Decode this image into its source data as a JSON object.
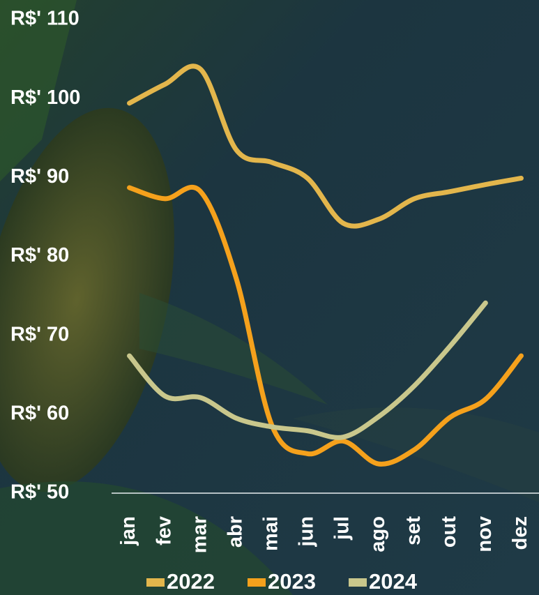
{
  "chart_data": {
    "type": "line",
    "categories": [
      "jan",
      "fev",
      "mar",
      "abr",
      "mai",
      "jun",
      "jul",
      "ago",
      "set",
      "out",
      "nov",
      "dez"
    ],
    "series": [
      {
        "name": "2022",
        "color": "#e3b64c",
        "values": [
          99.4,
          101.8,
          103.7,
          93.5,
          91.9,
          89.9,
          84.2,
          84.7,
          87.3,
          88.2,
          89.1,
          89.9
        ]
      },
      {
        "name": "2023",
        "color": "#f5a11c",
        "values": [
          88.7,
          87.3,
          88.2,
          77.2,
          58.6,
          55.0,
          56.6,
          53.7,
          55.5,
          59.6,
          61.9,
          67.4
        ]
      },
      {
        "name": "2024",
        "color": "#c9c78c",
        "values": [
          67.4,
          62.3,
          62.1,
          59.5,
          58.4,
          57.9,
          57.1,
          59.7,
          63.6,
          68.6,
          74.1,
          null
        ]
      }
    ],
    "ylim": [
      50,
      110
    ],
    "yticks": [
      {
        "value": 50,
        "label": "R$' 50"
      },
      {
        "value": 60,
        "label": "R$' 60"
      },
      {
        "value": 70,
        "label": "R$' 70"
      },
      {
        "value": 80,
        "label": "R$' 80"
      },
      {
        "value": 90,
        "label": "R$' 90"
      },
      {
        "value": 100,
        "label": "R$' 100"
      },
      {
        "value": 110,
        "label": "R$' 110"
      }
    ],
    "grid": false
  }
}
